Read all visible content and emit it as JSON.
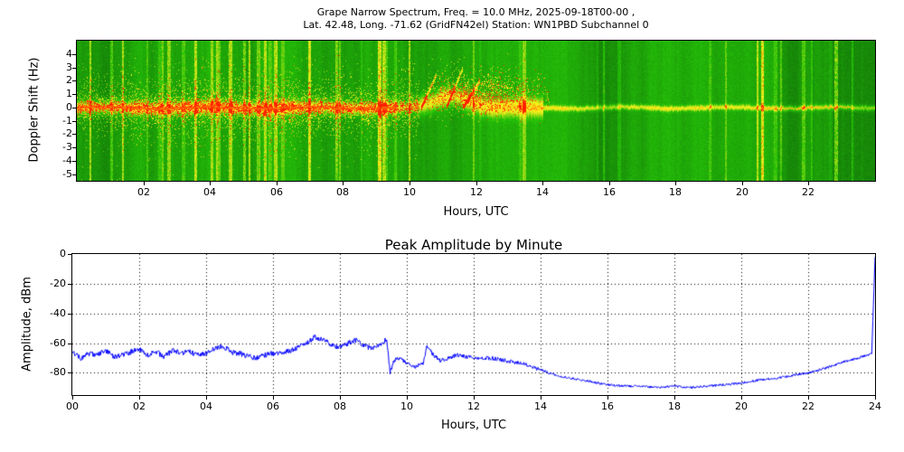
{
  "figure": {
    "background": "#ffffff"
  },
  "chart_data": [
    {
      "type": "heatmap",
      "name": "grape-narrow-spectrum",
      "title_lines": [
        "Grape Narrow Spectrum, Freq. = 10.0 MHz, 2025-09-18T00-00 ,",
        "Lat.  42.48, Long. -71.62 (GridFN42el) Station: WN1PBD Subchannel 0"
      ],
      "xlabel": "Hours, UTC",
      "ylabel": "Doppler Shift (Hz)",
      "xlim": [
        0,
        24
      ],
      "ylim": [
        -5.5,
        5
      ],
      "xticks": [
        "02",
        "04",
        "06",
        "08",
        "10",
        "12",
        "14",
        "16",
        "18",
        "20",
        "22"
      ],
      "xtick_values": [
        2,
        4,
        6,
        8,
        10,
        12,
        14,
        16,
        18,
        20,
        22
      ],
      "yticks": [
        4,
        3,
        2,
        1,
        0,
        -1,
        -2,
        -3,
        -4,
        -5
      ],
      "colormap": "green background (low), yellow (high), red (peak)",
      "description": "Spectrogram: strong carrier trace at ~0 Hz Doppler; red-core intense line 00:00-09:40 with yellow noise wings, vertical interference streaks through 00-10 UTC, dropout near 09:30-10:15, doppler disturbance with positive-shift chirps and diffuse spread 10:30-14:00, thin faint trace 14:00-24:00 with slight re-intensification 20:00-23:30, bright wide streak near 22:50-23:20",
      "band_segments": [
        {
          "start": 0,
          "end": 9.6,
          "amplitude": 0.5,
          "width": 0.5,
          "red_core": true
        },
        {
          "start": 9.6,
          "end": 10.3,
          "amplitude": 0.4,
          "width": 0.5,
          "red_core": false
        },
        {
          "start": 10.3,
          "end": 14.0,
          "amplitude": 0.45,
          "width": 0.7,
          "red_core": false
        },
        {
          "start": 14.0,
          "end": 24.1,
          "amplitude": 0.42,
          "width": 0.2,
          "red_core": false
        }
      ],
      "disturbance": {
        "start": 10.2,
        "end": 12.6,
        "peak_hour": 11.3,
        "peak_hz": 0.9
      },
      "chirps": [
        {
          "start": 10.35,
          "end": 10.8,
          "rate": 5.5
        },
        {
          "start": 11.1,
          "end": 11.6,
          "rate": 6.0
        },
        {
          "start": 11.6,
          "end": 12.1,
          "rate": 4.0
        }
      ],
      "cloud": {
        "center_hour": 12.1,
        "center_hz": 1.1,
        "sigma_hour": 1.5,
        "sigma_hz": 1.2
      },
      "late_red": {
        "start": 20.3,
        "end": 23.4
      },
      "streak_regions": [
        {
          "start": 0,
          "end": 10,
          "density": 0.09
        },
        {
          "start": 10,
          "end": 14,
          "density": 0.05
        },
        {
          "start": 22.6,
          "end": 23.3,
          "density": 0.16
        },
        {
          "start": 14,
          "end": 24,
          "density": 0.025
        }
      ]
    },
    {
      "type": "line",
      "name": "peak-amplitude-by-minute",
      "title": "Peak Amplitude by Minute",
      "xlabel": "Hours, UTC",
      "ylabel": "Amplitude, dBm",
      "xlim": [
        0,
        24
      ],
      "ylim": [
        -95,
        0
      ],
      "xticks": [
        "00",
        "02",
        "04",
        "06",
        "08",
        "10",
        "12",
        "14",
        "16",
        "18",
        "20",
        "22",
        "24"
      ],
      "xtick_values": [
        0,
        2,
        4,
        6,
        8,
        10,
        12,
        14,
        16,
        18,
        20,
        22,
        24
      ],
      "yticks": [
        0,
        -20,
        -40,
        -60,
        -80
      ],
      "grid": "dotted",
      "line_color": "#0000ff",
      "series": [
        {
          "name": "peak amplitude (dBm)",
          "x": [
            0,
            0.25,
            0.5,
            0.75,
            1,
            1.25,
            1.5,
            1.75,
            2,
            2.25,
            2.5,
            2.75,
            3,
            3.25,
            3.5,
            3.75,
            4,
            4.25,
            4.5,
            4.75,
            5,
            5.25,
            5.5,
            5.75,
            6,
            6.25,
            6.5,
            6.75,
            7,
            7.25,
            7.5,
            7.75,
            8,
            8.25,
            8.5,
            8.75,
            9,
            9.25,
            9.4,
            9.5,
            9.6,
            9.75,
            10,
            10.25,
            10.5,
            10.6,
            10.75,
            11,
            11.25,
            11.5,
            12,
            12.5,
            13,
            13.5,
            14,
            14.5,
            15,
            15.5,
            16,
            16.5,
            17,
            17.5,
            18,
            18.5,
            19,
            19.5,
            20,
            20.5,
            21,
            21.5,
            22,
            22.5,
            23,
            23.5,
            23.9,
            24
          ],
          "y": [
            -66,
            -70,
            -67,
            -68,
            -65,
            -69,
            -68,
            -66,
            -64,
            -68,
            -66,
            -69,
            -65,
            -67,
            -66,
            -68,
            -67,
            -64,
            -62,
            -66,
            -67,
            -69,
            -70,
            -68,
            -67,
            -66,
            -65,
            -63,
            -60,
            -56,
            -58,
            -61,
            -63,
            -60,
            -58,
            -62,
            -64,
            -60,
            -57,
            -80,
            -72,
            -70,
            -73,
            -76,
            -73,
            -62,
            -67,
            -72,
            -70,
            -68,
            -70,
            -70,
            -72,
            -74,
            -78,
            -82,
            -84,
            -86,
            -88,
            -89,
            -89,
            -90,
            -89,
            -90,
            -89,
            -88,
            -87,
            -85,
            -84,
            -82,
            -80,
            -77,
            -73,
            -70,
            -67,
            -2
          ]
        }
      ]
    }
  ]
}
